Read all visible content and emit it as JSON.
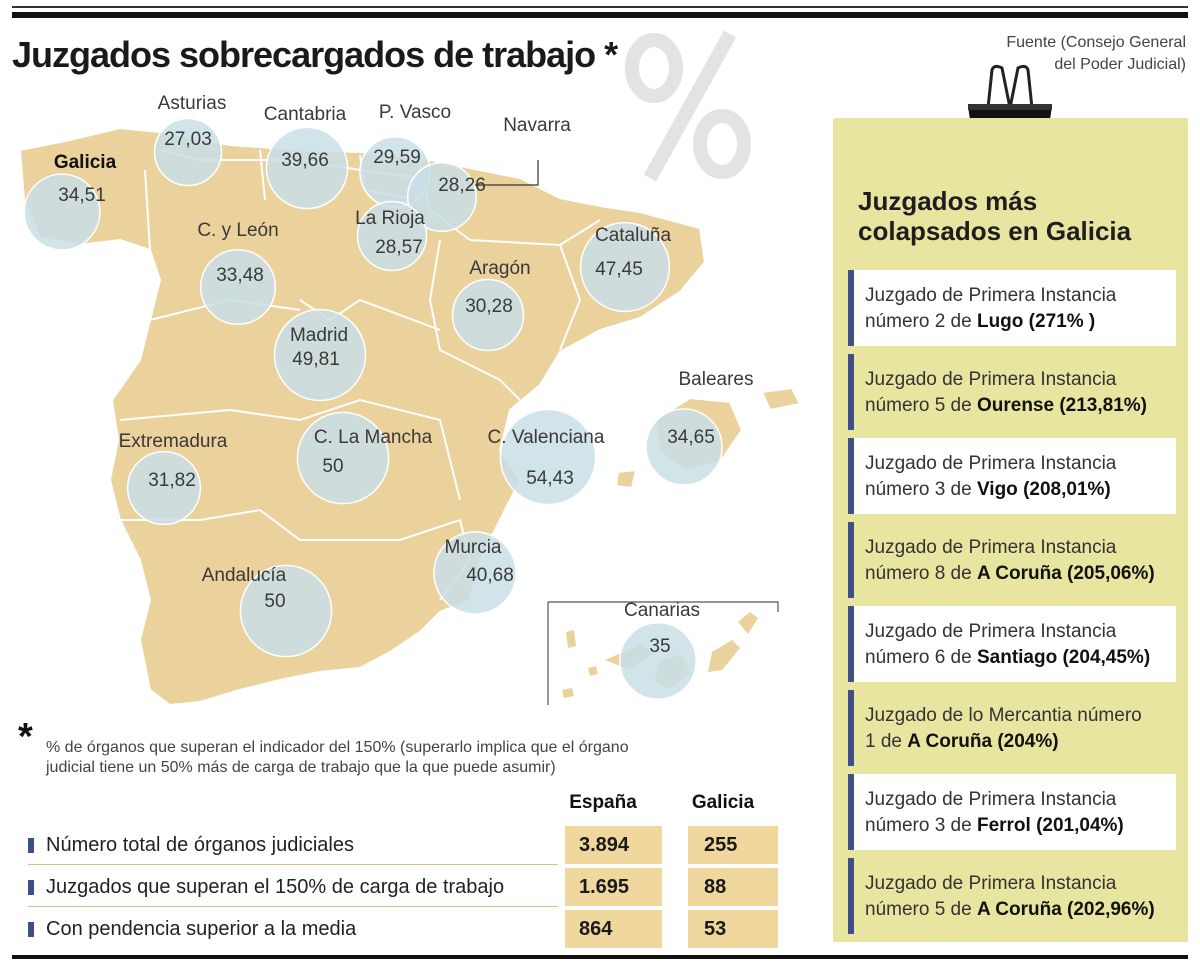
{
  "header": {
    "title": "Juzgados sobrecargados de trabajo *",
    "source_line1": "Fuente (Consejo General",
    "source_line2": "del Poder Judicial)"
  },
  "map": {
    "fill_color": "#ebd19b",
    "bubble_color": "#c9dfe6",
    "regions": [
      {
        "name": "Galicia",
        "value": "34,51",
        "value_num": 34.51,
        "highlight": true
      },
      {
        "name": "Asturias",
        "value": "27,03",
        "value_num": 27.03
      },
      {
        "name": "Cantabria",
        "value": "39,66",
        "value_num": 39.66
      },
      {
        "name": "P. Vasco",
        "value": "29,59",
        "value_num": 29.59
      },
      {
        "name": "Navarra",
        "value": "28,26",
        "value_num": 28.26
      },
      {
        "name": "La Rioja",
        "value": "28,57",
        "value_num": 28.57
      },
      {
        "name": "C. y León",
        "value": "33,48",
        "value_num": 33.48
      },
      {
        "name": "Aragón",
        "value": "30,28",
        "value_num": 30.28
      },
      {
        "name": "Cataluña",
        "value": "47,45",
        "value_num": 47.45
      },
      {
        "name": "Madrid",
        "value": "49,81",
        "value_num": 49.81
      },
      {
        "name": "Baleares",
        "value": "34,65",
        "value_num": 34.65
      },
      {
        "name": "Extremadura",
        "value": "31,82",
        "value_num": 31.82
      },
      {
        "name": "C. La Mancha",
        "value": "50",
        "value_num": 50
      },
      {
        "name": "C. Valenciana",
        "value": "54,43",
        "value_num": 54.43
      },
      {
        "name": "Murcia",
        "value": "40,68",
        "value_num": 40.68
      },
      {
        "name": "Andalucía",
        "value": "50",
        "value_num": 50
      },
      {
        "name": "Canarias",
        "value": "35",
        "value_num": 35
      }
    ]
  },
  "note": {
    "star": "*",
    "line1": "% de órganos que superan el indicador del 150% (superarlo implica que el órgano",
    "line2": "judicial tiene un 50% más de carga de trabajo que la que puede asumir)"
  },
  "table": {
    "columns": [
      "España",
      "Galicia"
    ],
    "rows": [
      {
        "label": "Número total de órganos judiciales",
        "espana": "3.894",
        "galicia": "255"
      },
      {
        "label": "Juzgados que superan el 150% de carga de trabajo",
        "espana": "1.695",
        "galicia": "88"
      },
      {
        "label": "Con pendencia superior a la media",
        "espana": "864",
        "galicia": "53"
      }
    ]
  },
  "sidebar": {
    "title_line1": "Juzgados más",
    "title_line2": "colapsados en Galicia",
    "items": [
      {
        "line1": "Juzgado de Primera Instancia",
        "prefix": "número 2 de ",
        "bold": "Lugo (271% )"
      },
      {
        "line1": "Juzgado de Primera Instancia",
        "prefix": "número 5 de ",
        "bold": "Ourense (213,81%)"
      },
      {
        "line1": "Juzgado de Primera Instancia",
        "prefix": "número 3 de ",
        "bold": "Vigo (208,01%)"
      },
      {
        "line1": "Juzgado de Primera Instancia",
        "prefix": "número 8 de ",
        "bold": "A Coruña (205,06%)"
      },
      {
        "line1": "Juzgado de Primera Instancia",
        "prefix": "número 6 de ",
        "bold": "Santiago (204,45%)"
      },
      {
        "line1": "Juzgado de lo Mercantia número",
        "prefix": "1 de ",
        "bold": "A Coruña (204%)"
      },
      {
        "line1": "Juzgado de Primera Instancia",
        "prefix": "número 3 de ",
        "bold": "Ferrol (201,04%)"
      },
      {
        "line1": "Juzgado de Primera Instancia",
        "prefix": "número 5 de ",
        "bold": "A Coruña (202,96%)"
      }
    ]
  }
}
